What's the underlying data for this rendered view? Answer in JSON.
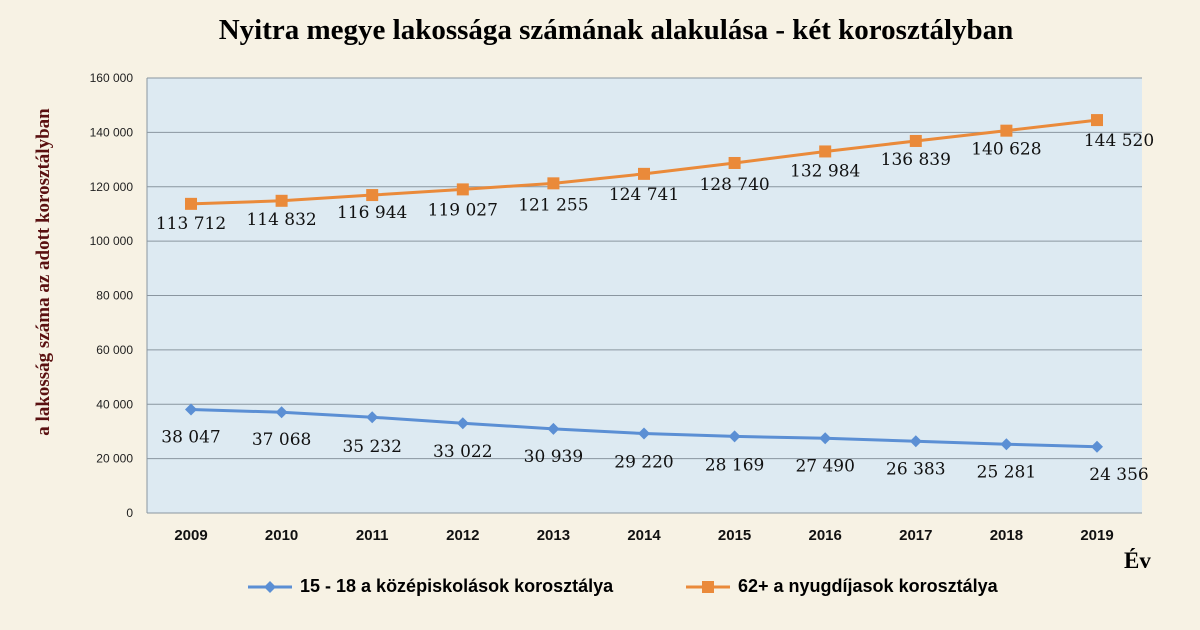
{
  "chart_data": {
    "type": "line",
    "title": "Nyitra megye lakossága számának alakulása - két korosztályban",
    "xlabel": "Év",
    "ylabel": "a lakosság száma az adott korosztályban",
    "x": [
      "2009",
      "2010",
      "2011",
      "2012",
      "2013",
      "2014",
      "2015",
      "2016",
      "2017",
      "2018",
      "2019"
    ],
    "ylim": [
      0,
      160000
    ],
    "yticks": [
      0,
      20000,
      40000,
      60000,
      80000,
      100000,
      120000,
      140000,
      160000
    ],
    "ytick_labels": [
      "0",
      "20 000",
      "40 000",
      "60 000",
      "80 000",
      "100 000",
      "120 000",
      "140 000",
      "160 000"
    ],
    "grid": true,
    "legend_position": "bottom",
    "series": [
      {
        "name": "15 - 18 a középiskolások korosztálya",
        "color": "#5b8fd4",
        "marker": "diamond",
        "values": [
          38047,
          37068,
          35232,
          33022,
          30939,
          29220,
          28169,
          27490,
          26383,
          25281,
          24356
        ],
        "labels": [
          "38 047",
          "37 068",
          "35 232",
          "33 022",
          "30 939",
          "29 220",
          "28 169",
          "27 490",
          "26 383",
          "25 281",
          "24 356"
        ]
      },
      {
        "name": "62+  a nyugdíjasok korosztálya",
        "color": "#ea8a3a",
        "marker": "square",
        "values": [
          113712,
          114832,
          116944,
          119027,
          121255,
          124741,
          128740,
          132984,
          136839,
          140628,
          144520
        ],
        "labels": [
          "113 712",
          "114 832",
          "116 944",
          "119 027",
          "121 255",
          "124 741",
          "128 740",
          "132 984",
          "136 839",
          "140 628",
          "144 520"
        ]
      }
    ]
  }
}
